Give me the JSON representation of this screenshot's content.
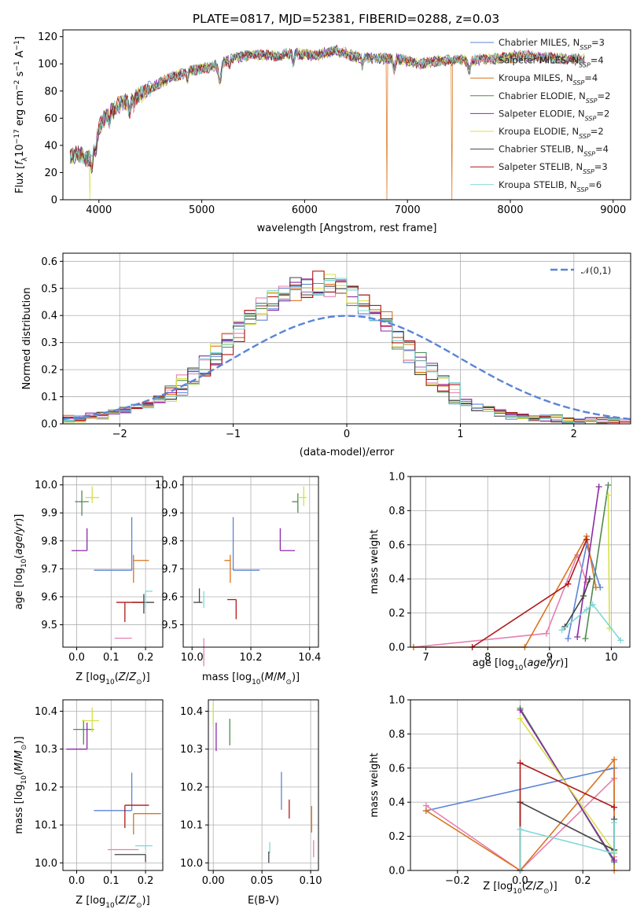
{
  "figure_title": "PLATE=0817, MJD=52381, FIBERID=0288, z=0.03",
  "colors": {
    "Chabrier MILES": "#5b84d6",
    "Salpeter MILES": "#e67fb0",
    "Kroupa MILES": "#d9741f",
    "Chabrier ELODIE": "#4f8a4f",
    "Salpeter ELODIE": "#8b2aa8",
    "Kroupa ELODIE": "#d7e04a",
    "Chabrier STELIB": "#444444",
    "Salpeter STELIB": "#b01818",
    "Kroupa STELIB": "#7fd8d8"
  },
  "chart_data": [
    {
      "id": "spectrum",
      "type": "line",
      "title": "PLATE=0817, MJD=52381, FIBERID=0288, z=0.03",
      "xlabel": "wavelength [Angstrom, rest frame]",
      "ylabel": "Flux [f_λ 10^-17 erg cm^-2 s^-1 A^-1]",
      "xlim": [
        3650,
        9170
      ],
      "ylim": [
        0,
        125
      ],
      "xticks": [
        "4000",
        "5000",
        "6000",
        "7000",
        "8000",
        "9000"
      ],
      "yticks": [
        "0",
        "20",
        "40",
        "60",
        "80",
        "100",
        "120"
      ],
      "grid": false,
      "legend_position": "top-right",
      "legend": [
        {
          "name": "Chabrier MILES",
          "nssp": "3"
        },
        {
          "name": "Salpeter MILES",
          "nssp": "4"
        },
        {
          "name": "Kroupa MILES",
          "nssp": "4"
        },
        {
          "name": "Chabrier ELODIE",
          "nssp": "2"
        },
        {
          "name": "Salpeter ELODIE",
          "nssp": "2"
        },
        {
          "name": "Kroupa ELODIE",
          "nssp": "2"
        },
        {
          "name": "Chabrier STELIB",
          "nssp": "4"
        },
        {
          "name": "Salpeter STELIB",
          "nssp": "3"
        },
        {
          "name": "Kroupa STELIB",
          "nssp": "6"
        }
      ],
      "continuum": {
        "x": [
          3720,
          3800,
          3900,
          3950,
          4050,
          4200,
          4300,
          4500,
          4700,
          4900,
          5100,
          5300,
          5500,
          5700,
          5900,
          6100,
          6300,
          6500,
          6700,
          6900,
          7100,
          7300,
          7500,
          7700,
          7900,
          8100,
          8300,
          8500,
          8700
        ],
        "y": [
          32,
          34,
          30,
          45,
          60,
          70,
          73,
          82,
          90,
          95,
          98,
          104,
          107,
          106,
          108,
          106,
          110,
          105,
          104,
          104,
          100,
          102,
          103,
          103,
          104,
          106,
          105,
          104,
          103
        ]
      },
      "drops": [
        {
          "series": "Kroupa ELODIE",
          "x": 3910
        },
        {
          "series": "Kroupa MILES",
          "x": 6800
        },
        {
          "series": "Kroupa MILES",
          "x": 7430
        }
      ]
    },
    {
      "id": "residual_histogram",
      "type": "histogram",
      "xlabel": "(data-model)/error",
      "ylabel": "Normed distribution",
      "xlim": [
        -2.5,
        2.5
      ],
      "ylim": [
        0,
        0.63
      ],
      "xticks": [
        "−2",
        "−1",
        "0",
        "1",
        "2"
      ],
      "yticks": [
        "0.0",
        "0.1",
        "0.2",
        "0.3",
        "0.4",
        "0.5",
        "0.6"
      ],
      "grid": true,
      "bin_width": 0.1,
      "reference_curve": {
        "name": "𝒩(0,1)",
        "style": "dashed",
        "color": "#5b84d6"
      },
      "legend_position": "top-right",
      "approx_bin_values": [
        0.02,
        0.02,
        0.03,
        0.03,
        0.04,
        0.05,
        0.06,
        0.07,
        0.09,
        0.11,
        0.14,
        0.18,
        0.22,
        0.26,
        0.3,
        0.34,
        0.38,
        0.42,
        0.45,
        0.48,
        0.5,
        0.51,
        0.52,
        0.51,
        0.5,
        0.48,
        0.45,
        0.41,
        0.37,
        0.32,
        0.27,
        0.22,
        0.18,
        0.14,
        0.11,
        0.08,
        0.06,
        0.05,
        0.04,
        0.03,
        0.03,
        0.02,
        0.02,
        0.02,
        0.01,
        0.01,
        0.01,
        0.01,
        0.01,
        0.01
      ]
    },
    {
      "id": "age_vs_Z",
      "type": "errorbar",
      "xlabel": "Z [log10(Z/Z⊙)]",
      "ylabel": "age [log10(age/yr)]",
      "xlim": [
        -0.04,
        0.25
      ],
      "ylim": [
        9.42,
        10.03
      ],
      "xticks": [
        "0.0",
        "0.1",
        "0.2"
      ],
      "yticks": [
        "9.5",
        "9.6",
        "9.7",
        "9.8",
        "9.9",
        "10.0"
      ],
      "grid": true,
      "points": [
        {
          "series": "Chabrier MILES",
          "x": 0.16,
          "xerr": [
            0.11,
            0.0
          ],
          "y": 9.695,
          "yerr": [
            0.0,
            0.19
          ]
        },
        {
          "series": "Salpeter MILES",
          "x": 0.16,
          "xerr": [
            0.05,
            0.0
          ],
          "y": 9.452,
          "yerr": [
            0.0,
            0.0
          ]
        },
        {
          "series": "Kroupa MILES",
          "x": 0.165,
          "xerr": [
            0.0,
            0.045
          ],
          "y": 9.73,
          "yerr": [
            0.08,
            0.02
          ]
        },
        {
          "series": "Chabrier ELODIE",
          "x": 0.015,
          "xerr": [
            0.02,
            0.02
          ],
          "y": 9.94,
          "yerr": [
            0.05,
            0.04
          ]
        },
        {
          "series": "Salpeter ELODIE",
          "x": 0.03,
          "xerr": [
            0.045,
            0.0
          ],
          "y": 9.765,
          "yerr": [
            0.0,
            0.08
          ]
        },
        {
          "series": "Kroupa ELODIE",
          "x": 0.045,
          "xerr": [
            0.02,
            0.02
          ],
          "y": 9.955,
          "yerr": [
            0.02,
            0.04
          ]
        },
        {
          "series": "Chabrier STELIB",
          "x": 0.195,
          "xerr": [
            0.035,
            0.03
          ],
          "y": 9.58,
          "yerr": [
            0.04,
            0.03
          ]
        },
        {
          "series": "Salpeter STELIB",
          "x": 0.14,
          "xerr": [
            0.025,
            0.055
          ],
          "y": 9.58,
          "yerr": [
            0.07,
            0.0
          ]
        },
        {
          "series": "Kroupa STELIB",
          "x": 0.2,
          "xerr": [
            0.0,
            0.02
          ],
          "y": 9.62,
          "yerr": [
            0.06,
            0.0
          ]
        }
      ]
    },
    {
      "id": "age_vs_mass",
      "type": "errorbar",
      "xlabel": "mass [log10(M/M⊙)]",
      "ylabel": "",
      "xlim": [
        9.97,
        10.43
      ],
      "ylim": [
        9.42,
        10.03
      ],
      "xticks": [
        "10.0",
        "10.2",
        "10.4"
      ],
      "yticks": [
        "9.5",
        "9.6",
        "9.7",
        "9.8",
        "9.9",
        "10.0"
      ],
      "grid": true,
      "points": [
        {
          "series": "Chabrier MILES",
          "x": 10.14,
          "xerr": [
            0.0,
            0.09
          ],
          "y": 9.695,
          "yerr": [
            0.0,
            0.19
          ]
        },
        {
          "series": "Salpeter MILES",
          "x": 10.04,
          "xerr": [
            0.0,
            0.0
          ],
          "y": 9.452,
          "yerr": [
            0.1,
            0.0
          ]
        },
        {
          "series": "Kroupa MILES",
          "x": 10.13,
          "xerr": [
            0.02,
            0.0
          ],
          "y": 9.73,
          "yerr": [
            0.08,
            0.02
          ]
        },
        {
          "series": "Chabrier ELODIE",
          "x": 10.36,
          "xerr": [
            0.02,
            0.0
          ],
          "y": 9.94,
          "yerr": [
            0.04,
            0.03
          ]
        },
        {
          "series": "Salpeter ELODIE",
          "x": 10.3,
          "xerr": [
            0.0,
            0.05
          ],
          "y": 9.765,
          "yerr": [
            0.0,
            0.08
          ]
        },
        {
          "series": "Kroupa ELODIE",
          "x": 10.38,
          "xerr": [
            0.02,
            0.01
          ],
          "y": 9.955,
          "yerr": [
            0.03,
            0.04
          ]
        },
        {
          "series": "Chabrier STELIB",
          "x": 10.025,
          "xerr": [
            0.02,
            0.01
          ],
          "y": 9.58,
          "yerr": [
            0.0,
            0.05
          ]
        },
        {
          "series": "Salpeter STELIB",
          "x": 10.15,
          "xerr": [
            0.03,
            0.0
          ],
          "y": 9.59,
          "yerr": [
            0.07,
            0.0
          ]
        },
        {
          "series": "Kroupa STELIB",
          "x": 10.04,
          "xerr": [
            0.0,
            0.0
          ],
          "y": 9.6,
          "yerr": [
            0.04,
            0.02
          ]
        }
      ]
    },
    {
      "id": "mass_weight_vs_age",
      "type": "line",
      "xlabel": "age [log10(age/yr)]",
      "ylabel": "mass weight",
      "xlim": [
        6.75,
        10.3
      ],
      "ylim": [
        0,
        1
      ],
      "xticks": [
        "7",
        "8",
        "9",
        "10"
      ],
      "yticks": [
        "0.0",
        "0.2",
        "0.4",
        "0.6",
        "0.8",
        "1.0"
      ],
      "grid": true,
      "series": [
        {
          "name": "Chabrier MILES",
          "x": [
            9.3,
            9.6,
            9.82
          ],
          "y": [
            0.05,
            0.6,
            0.35
          ]
        },
        {
          "name": "Salpeter MILES",
          "x": [
            6.8,
            8.95,
            9.45,
            9.6
          ],
          "y": [
            0.0,
            0.08,
            0.54,
            0.38
          ]
        },
        {
          "name": "Kroupa MILES",
          "x": [
            6.8,
            8.6,
            9.6,
            9.75
          ],
          "y": [
            0.0,
            0.0,
            0.65,
            0.35
          ]
        },
        {
          "name": "Chabrier ELODIE",
          "x": [
            9.58,
            9.95
          ],
          "y": [
            0.05,
            0.95
          ]
        },
        {
          "name": "Salpeter ELODIE",
          "x": [
            9.45,
            9.8
          ],
          "y": [
            0.06,
            0.94
          ]
        },
        {
          "name": "Kroupa ELODIE",
          "x": [
            9.95,
            9.97
          ],
          "y": [
            0.89,
            0.11
          ]
        },
        {
          "name": "Chabrier STELIB",
          "x": [
            9.25,
            9.55,
            9.65
          ],
          "y": [
            0.12,
            0.3,
            0.4
          ]
        },
        {
          "name": "Salpeter STELIB",
          "x": [
            7.75,
            9.3,
            9.6
          ],
          "y": [
            0.0,
            0.37,
            0.63
          ]
        },
        {
          "name": "Kroupa STELIB",
          "x": [
            9.2,
            9.6,
            9.7,
            10.15
          ],
          "y": [
            0.1,
            0.22,
            0.25,
            0.04
          ]
        }
      ]
    },
    {
      "id": "mass_vs_Z",
      "type": "errorbar",
      "xlabel": "Z [log10(Z/Z⊙)]",
      "ylabel": "mass [log10(M/M⊙)]",
      "xlim": [
        -0.04,
        0.25
      ],
      "ylim": [
        9.98,
        10.43
      ],
      "xticks": [
        "0.0",
        "0.1",
        "0.2"
      ],
      "yticks": [
        "10.0",
        "10.1",
        "10.2",
        "10.3",
        "10.4"
      ],
      "grid": true,
      "points": [
        {
          "series": "Chabrier MILES",
          "x": 0.16,
          "xerr": [
            0.11,
            0.0
          ],
          "y": 10.138,
          "yerr": [
            0.0,
            0.1
          ]
        },
        {
          "series": "Salpeter MILES",
          "x": 0.16,
          "xerr": [
            0.07,
            0.02
          ],
          "y": 10.035,
          "yerr": [
            0.0,
            0.0
          ]
        },
        {
          "series": "Kroupa MILES",
          "x": 0.165,
          "xerr": [
            0.0,
            0.08
          ],
          "y": 10.13,
          "yerr": [
            0.055,
            0.0
          ]
        },
        {
          "series": "Chabrier ELODIE",
          "x": 0.02,
          "xerr": [
            0.03,
            0.03
          ],
          "y": 10.352,
          "yerr": [
            0.04,
            0.025
          ]
        },
        {
          "series": "Salpeter ELODIE",
          "x": 0.03,
          "xerr": [
            0.06,
            0.0
          ],
          "y": 10.3,
          "yerr": [
            0.0,
            0.07
          ]
        },
        {
          "series": "Kroupa ELODIE",
          "x": 0.045,
          "xerr": [
            0.03,
            0.02
          ],
          "y": 10.375,
          "yerr": [
            0.03,
            0.035
          ]
        },
        {
          "series": "Chabrier STELIB",
          "x": 0.2,
          "xerr": [
            0.09,
            0.0
          ],
          "y": 10.022,
          "yerr": [
            0.02,
            0.0
          ]
        },
        {
          "series": "Salpeter STELIB",
          "x": 0.14,
          "xerr": [
            0.0,
            0.07
          ],
          "y": 10.152,
          "yerr": [
            0.06,
            0.0
          ]
        },
        {
          "series": "Kroupa STELIB",
          "x": 0.2,
          "xerr": [
            0.03,
            0.02
          ],
          "y": 10.045,
          "yerr": [
            0.01,
            0.0
          ]
        }
      ]
    },
    {
      "id": "mass_vs_EBV",
      "type": "errorbar",
      "xlabel": "E(B-V)",
      "ylabel": "",
      "xlim": [
        -0.005,
        0.108
      ],
      "ylim": [
        9.98,
        10.43
      ],
      "xticks": [
        "0.00",
        "0.05",
        "0.10"
      ],
      "yticks": [
        "10.0",
        "10.1",
        "10.2",
        "10.3",
        "10.4"
      ],
      "grid": true,
      "points": [
        {
          "series": "Chabrier MILES",
          "x": 0.07,
          "xerr": [
            0.0,
            0.0
          ],
          "y": 10.19,
          "yerr": [
            0.05,
            0.05
          ]
        },
        {
          "series": "Salpeter MILES",
          "x": 0.103,
          "xerr": [
            0.0,
            0.0
          ],
          "y": 10.04,
          "yerr": [
            0.025,
            0.02
          ]
        },
        {
          "series": "Kroupa MILES",
          "x": 0.101,
          "xerr": [
            0.0,
            0.0
          ],
          "y": 10.12,
          "yerr": [
            0.04,
            0.03
          ]
        },
        {
          "series": "Chabrier ELODIE",
          "x": 0.017,
          "xerr": [
            0.0,
            0.0
          ],
          "y": 10.35,
          "yerr": [
            0.04,
            0.03
          ]
        },
        {
          "series": "Salpeter ELODIE",
          "x": 0.003,
          "xerr": [
            0.0,
            0.0
          ],
          "y": 10.33,
          "yerr": [
            0.035,
            0.04
          ]
        },
        {
          "series": "Kroupa ELODIE",
          "x": 0.0,
          "xerr": [
            0.0,
            0.0
          ],
          "y": 10.39,
          "yerr": [
            0.03,
            0.03
          ]
        },
        {
          "series": "Chabrier STELIB",
          "x": 0.057,
          "xerr": [
            0.0,
            0.0
          ],
          "y": 10.02,
          "yerr": [
            0.02,
            0.01
          ]
        },
        {
          "series": "Salpeter STELIB",
          "x": 0.078,
          "xerr": [
            0.0,
            0.0
          ],
          "y": 10.147,
          "yerr": [
            0.03,
            0.02
          ]
        },
        {
          "series": "Kroupa STELIB",
          "x": 0.058,
          "xerr": [
            0.0,
            0.0
          ],
          "y": 10.04,
          "yerr": [
            0.015,
            0.015
          ]
        }
      ]
    },
    {
      "id": "mass_weight_vs_Z",
      "type": "line",
      "xlabel": "Z [log10(Z/Z⊙)]",
      "ylabel": "mass weight",
      "xlim": [
        -0.35,
        0.35
      ],
      "ylim": [
        0,
        1
      ],
      "xticks": [
        "−0.2",
        "0.0",
        "0.2"
      ],
      "yticks": [
        "0.0",
        "0.2",
        "0.4",
        "0.6",
        "0.8",
        "1.0"
      ],
      "grid": true,
      "series": [
        {
          "name": "Chabrier MILES",
          "x": [
            -0.3,
            0.3,
            0.3
          ],
          "y": [
            0.35,
            0.6,
            0.05
          ]
        },
        {
          "name": "Salpeter MILES",
          "x": [
            -0.3,
            0.0,
            0.3,
            0.3
          ],
          "y": [
            0.38,
            0.0,
            0.54,
            0.08
          ]
        },
        {
          "name": "Kroupa MILES",
          "x": [
            -0.3,
            0.0,
            0.3,
            0.3
          ],
          "y": [
            0.35,
            0.0,
            0.65,
            0.0
          ]
        },
        {
          "name": "Chabrier ELODIE",
          "x": [
            0.0,
            0.3
          ],
          "y": [
            0.95,
            0.05
          ]
        },
        {
          "name": "Salpeter ELODIE",
          "x": [
            0.0,
            0.3
          ],
          "y": [
            0.94,
            0.06
          ]
        },
        {
          "name": "Kroupa ELODIE",
          "x": [
            0.0,
            0.3
          ],
          "y": [
            0.89,
            0.11
          ]
        },
        {
          "name": "Chabrier STELIB",
          "x": [
            0.0,
            0.0,
            0.3,
            0.3
          ],
          "y": [
            0.0,
            0.4,
            0.12,
            0.3
          ]
        },
        {
          "name": "Salpeter STELIB",
          "x": [
            0.0,
            0.0,
            0.3
          ],
          "y": [
            0.0,
            0.63,
            0.37
          ]
        },
        {
          "name": "Kroupa STELIB",
          "x": [
            0.0,
            0.0,
            0.3,
            0.3
          ],
          "y": [
            0.0,
            0.24,
            0.1,
            0.28
          ]
        }
      ]
    }
  ]
}
